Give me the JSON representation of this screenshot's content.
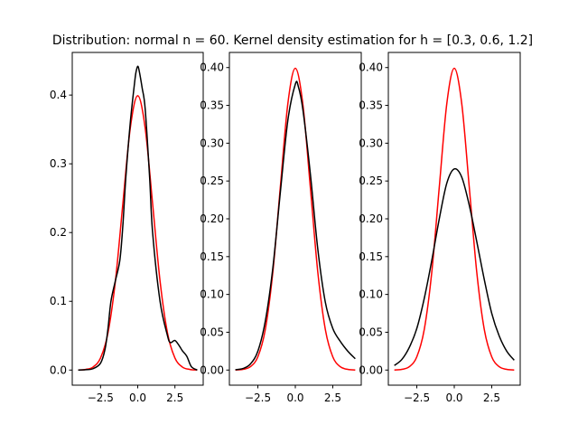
{
  "figure": {
    "title": "Distribution: normal n = 60. Kernel density estimation for h = [0.3, 0.6, 1.2]"
  },
  "colors": {
    "true_density": "#ff0000",
    "kde_estimate": "#000000",
    "axes": "#000000",
    "background": "#ffffff"
  },
  "chart_data": [
    {
      "type": "line",
      "grid": false,
      "xlim": [
        -4.4,
        4.4
      ],
      "ylim": [
        -0.022,
        0.462
      ],
      "xticks": [
        -2.5,
        0.0,
        2.5
      ],
      "xtick_labels": [
        "−2.5",
        "0.0",
        "2.5"
      ],
      "yticks": [
        0.0,
        0.1,
        0.2,
        0.3,
        0.4
      ],
      "ytick_labels": [
        "0.0",
        "0.1",
        "0.2",
        "0.3",
        "0.4"
      ],
      "series": [
        {
          "color": "#ff0000",
          "x": [
            -4.0,
            -3.5,
            -3.0,
            -2.5,
            -2.0,
            -1.5,
            -1.0,
            -0.5,
            0.0,
            0.5,
            1.0,
            1.5,
            2.0,
            2.5,
            3.0,
            3.5,
            4.0
          ],
          "y": [
            0.0001,
            0.0009,
            0.0044,
            0.0175,
            0.054,
            0.1295,
            0.242,
            0.352,
            0.399,
            0.352,
            0.242,
            0.1295,
            0.054,
            0.0175,
            0.0044,
            0.0009,
            0.0001
          ]
        },
        {
          "color": "#000000",
          "x": [
            -4.0,
            -3.5,
            -3.0,
            -2.5,
            -2.2,
            -2.0,
            -1.8,
            -1.5,
            -1.2,
            -1.0,
            -0.8,
            -0.5,
            -0.2,
            -0.1,
            0.0,
            0.1,
            0.3,
            0.5,
            0.8,
            1.0,
            1.5,
            2.0,
            2.2,
            2.5,
            2.8,
            3.0,
            3.3,
            3.6,
            4.0
          ],
          "y": [
            0.0,
            0.0005,
            0.002,
            0.01,
            0.03,
            0.06,
            0.1,
            0.13,
            0.16,
            0.21,
            0.28,
            0.36,
            0.42,
            0.435,
            0.442,
            0.435,
            0.41,
            0.38,
            0.28,
            0.2,
            0.1,
            0.05,
            0.04,
            0.043,
            0.035,
            0.028,
            0.02,
            0.005,
            0.0
          ]
        }
      ]
    },
    {
      "type": "line",
      "grid": false,
      "xlim": [
        -4.4,
        4.4
      ],
      "ylim": [
        -0.02,
        0.42
      ],
      "xticks": [
        -2.5,
        0.0,
        2.5
      ],
      "xtick_labels": [
        "−2.5",
        "0.0",
        "2.5"
      ],
      "yticks": [
        0.0,
        0.05,
        0.1,
        0.15,
        0.2,
        0.25,
        0.3,
        0.35,
        0.4
      ],
      "ytick_labels": [
        "0.00",
        "0.05",
        "0.10",
        "0.15",
        "0.20",
        "0.25",
        "0.30",
        "0.35",
        "0.40"
      ],
      "series": [
        {
          "color": "#ff0000",
          "x": [
            -4.0,
            -3.5,
            -3.0,
            -2.5,
            -2.0,
            -1.5,
            -1.0,
            -0.5,
            0.0,
            0.5,
            1.0,
            1.5,
            2.0,
            2.5,
            3.0,
            3.5,
            4.0
          ],
          "y": [
            0.0001,
            0.0009,
            0.0044,
            0.0175,
            0.054,
            0.1295,
            0.242,
            0.352,
            0.399,
            0.352,
            0.242,
            0.1295,
            0.054,
            0.0175,
            0.0044,
            0.0009,
            0.0001
          ]
        },
        {
          "color": "#000000",
          "x": [
            -4.0,
            -3.5,
            -3.0,
            -2.5,
            -2.0,
            -1.5,
            -1.0,
            -0.5,
            0.0,
            0.2,
            0.5,
            1.0,
            1.5,
            2.0,
            2.5,
            3.0,
            3.5,
            4.0
          ],
          "y": [
            0.0005,
            0.002,
            0.008,
            0.025,
            0.065,
            0.135,
            0.235,
            0.33,
            0.378,
            0.375,
            0.345,
            0.26,
            0.16,
            0.09,
            0.055,
            0.038,
            0.025,
            0.015
          ]
        }
      ]
    },
    {
      "type": "line",
      "grid": false,
      "xlim": [
        -4.4,
        4.4
      ],
      "ylim": [
        -0.02,
        0.42
      ],
      "xticks": [
        -2.5,
        0.0,
        2.5
      ],
      "xtick_labels": [
        "−2.5",
        "0.0",
        "2.5"
      ],
      "yticks": [
        0.0,
        0.05,
        0.1,
        0.15,
        0.2,
        0.25,
        0.3,
        0.35,
        0.4
      ],
      "ytick_labels": [
        "0.00",
        "0.05",
        "0.10",
        "0.15",
        "0.20",
        "0.25",
        "0.30",
        "0.35",
        "0.40"
      ],
      "series": [
        {
          "color": "#ff0000",
          "x": [
            -4.0,
            -3.5,
            -3.0,
            -2.5,
            -2.0,
            -1.5,
            -1.0,
            -0.5,
            0.0,
            0.5,
            1.0,
            1.5,
            2.0,
            2.5,
            3.0,
            3.5,
            4.0
          ],
          "y": [
            0.0001,
            0.0009,
            0.0044,
            0.0175,
            0.054,
            0.1295,
            0.242,
            0.352,
            0.399,
            0.352,
            0.242,
            0.1295,
            0.054,
            0.0175,
            0.0044,
            0.0009,
            0.0001
          ]
        },
        {
          "color": "#000000",
          "x": [
            -4.0,
            -3.5,
            -3.0,
            -2.5,
            -2.0,
            -1.5,
            -1.0,
            -0.5,
            0.0,
            0.5,
            1.0,
            1.5,
            2.0,
            2.5,
            3.0,
            3.5,
            4.0
          ],
          "y": [
            0.006,
            0.014,
            0.03,
            0.055,
            0.095,
            0.145,
            0.2,
            0.247,
            0.266,
            0.255,
            0.218,
            0.17,
            0.12,
            0.075,
            0.045,
            0.025,
            0.013
          ]
        }
      ]
    }
  ]
}
